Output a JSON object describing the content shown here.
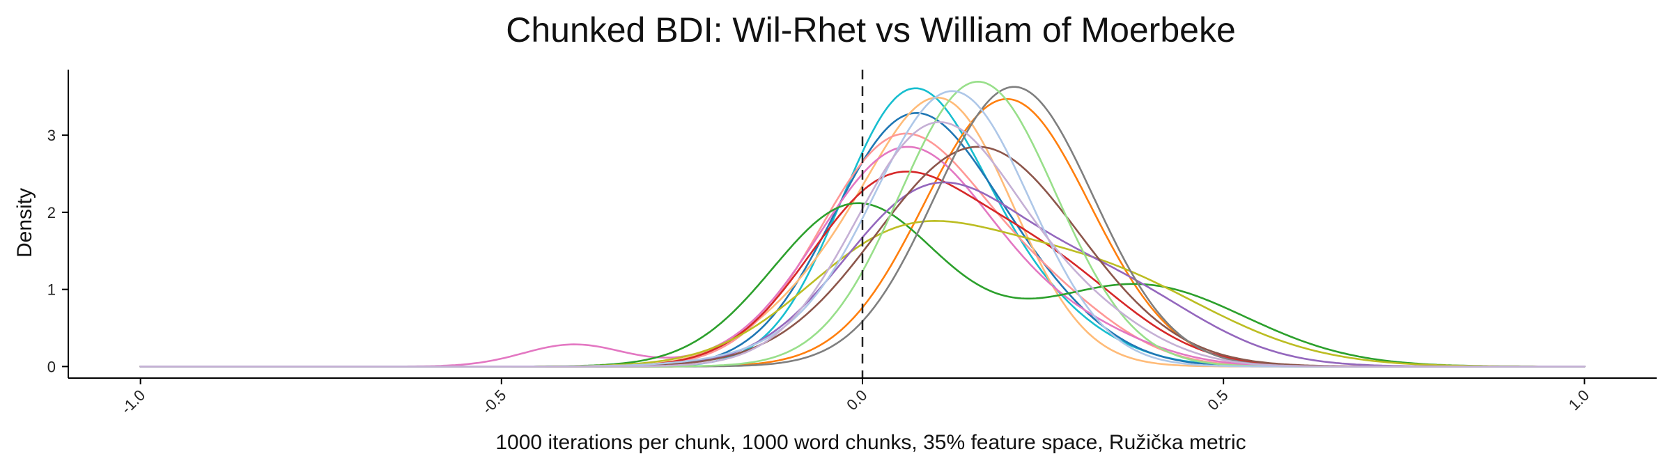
{
  "chart_data": {
    "type": "line",
    "title": "Chunked BDI: Wil-Rhet vs William of Moerbeke",
    "xlabel": "1000 iterations per chunk, 1000 word chunks, 35% feature space, Ružička metric",
    "ylabel": "Density",
    "xlim": [
      -1.1,
      1.1
    ],
    "ylim": [
      -0.15,
      3.85
    ],
    "xticks": [
      -1.0,
      -0.5,
      0.0,
      0.5,
      1.0
    ],
    "xtick_labels": [
      "-1.0",
      "-0.5",
      "0.0",
      "0.5",
      "1.0"
    ],
    "yticks": [
      0,
      1,
      2,
      3
    ],
    "ytick_labels": [
      "0",
      "1",
      "2",
      "3"
    ],
    "vline": 0.0,
    "grid": false,
    "series": [
      {
        "color": "#17becf",
        "components": [
          {
            "w": 0.76,
            "m": 0.06,
            "s": 0.095
          },
          {
            "w": 0.24,
            "m": 0.2,
            "s": 0.11
          }
        ]
      },
      {
        "color": "#1f77b4",
        "components": [
          {
            "w": 0.8,
            "m": 0.06,
            "s": 0.105
          },
          {
            "w": 0.2,
            "m": 0.22,
            "s": 0.1
          }
        ]
      },
      {
        "color": "#ff7f0e",
        "components": [
          {
            "w": 1.0,
            "m": 0.2,
            "s": 0.115
          }
        ]
      },
      {
        "color": "#ffbb78",
        "components": [
          {
            "w": 0.85,
            "m": 0.11,
            "s": 0.1
          },
          {
            "w": 0.15,
            "m": -0.07,
            "s": 0.09
          }
        ]
      },
      {
        "color": "#ff9896",
        "components": [
          {
            "w": 0.8,
            "m": 0.05,
            "s": 0.11
          },
          {
            "w": 0.2,
            "m": 0.25,
            "s": 0.1
          }
        ]
      },
      {
        "color": "#e377c2",
        "components": [
          {
            "w": 0.85,
            "m": 0.06,
            "s": 0.12
          },
          {
            "w": 0.1,
            "m": 0.3,
            "s": 0.1
          },
          {
            "w": 0.05,
            "m": -0.4,
            "s": 0.07
          }
        ]
      },
      {
        "color": "#d62728",
        "components": [
          {
            "w": 0.6,
            "m": 0.03,
            "s": 0.11
          },
          {
            "w": 0.4,
            "m": 0.24,
            "s": 0.12
          }
        ]
      },
      {
        "color": "#2ca02c",
        "components": [
          {
            "w": 0.6,
            "m": -0.01,
            "s": 0.115
          },
          {
            "w": 0.4,
            "m": 0.38,
            "s": 0.15
          }
        ]
      },
      {
        "color": "#bcbd22",
        "components": [
          {
            "w": 0.45,
            "m": 0.04,
            "s": 0.13
          },
          {
            "w": 0.55,
            "m": 0.3,
            "s": 0.17
          }
        ]
      },
      {
        "color": "#9467bd",
        "components": [
          {
            "w": 0.65,
            "m": 0.09,
            "s": 0.12
          },
          {
            "w": 0.35,
            "m": 0.33,
            "s": 0.13
          }
        ]
      },
      {
        "color": "#8c564b",
        "components": [
          {
            "w": 1.0,
            "m": 0.16,
            "s": 0.14
          }
        ]
      },
      {
        "color": "#7f7f7f",
        "components": [
          {
            "w": 1.0,
            "m": 0.21,
            "s": 0.11
          }
        ]
      },
      {
        "color": "#98df8a",
        "components": [
          {
            "w": 1.0,
            "m": 0.16,
            "s": 0.108
          }
        ]
      },
      {
        "color": "#aec7e8",
        "components": [
          {
            "w": 0.88,
            "m": 0.13,
            "s": 0.105
          },
          {
            "w": 0.12,
            "m": 0.0,
            "s": 0.13
          }
        ]
      },
      {
        "color": "#c5b0d5",
        "components": [
          {
            "w": 0.85,
            "m": 0.1,
            "s": 0.11
          },
          {
            "w": 0.15,
            "m": 0.3,
            "s": 0.1
          }
        ]
      }
    ]
  }
}
